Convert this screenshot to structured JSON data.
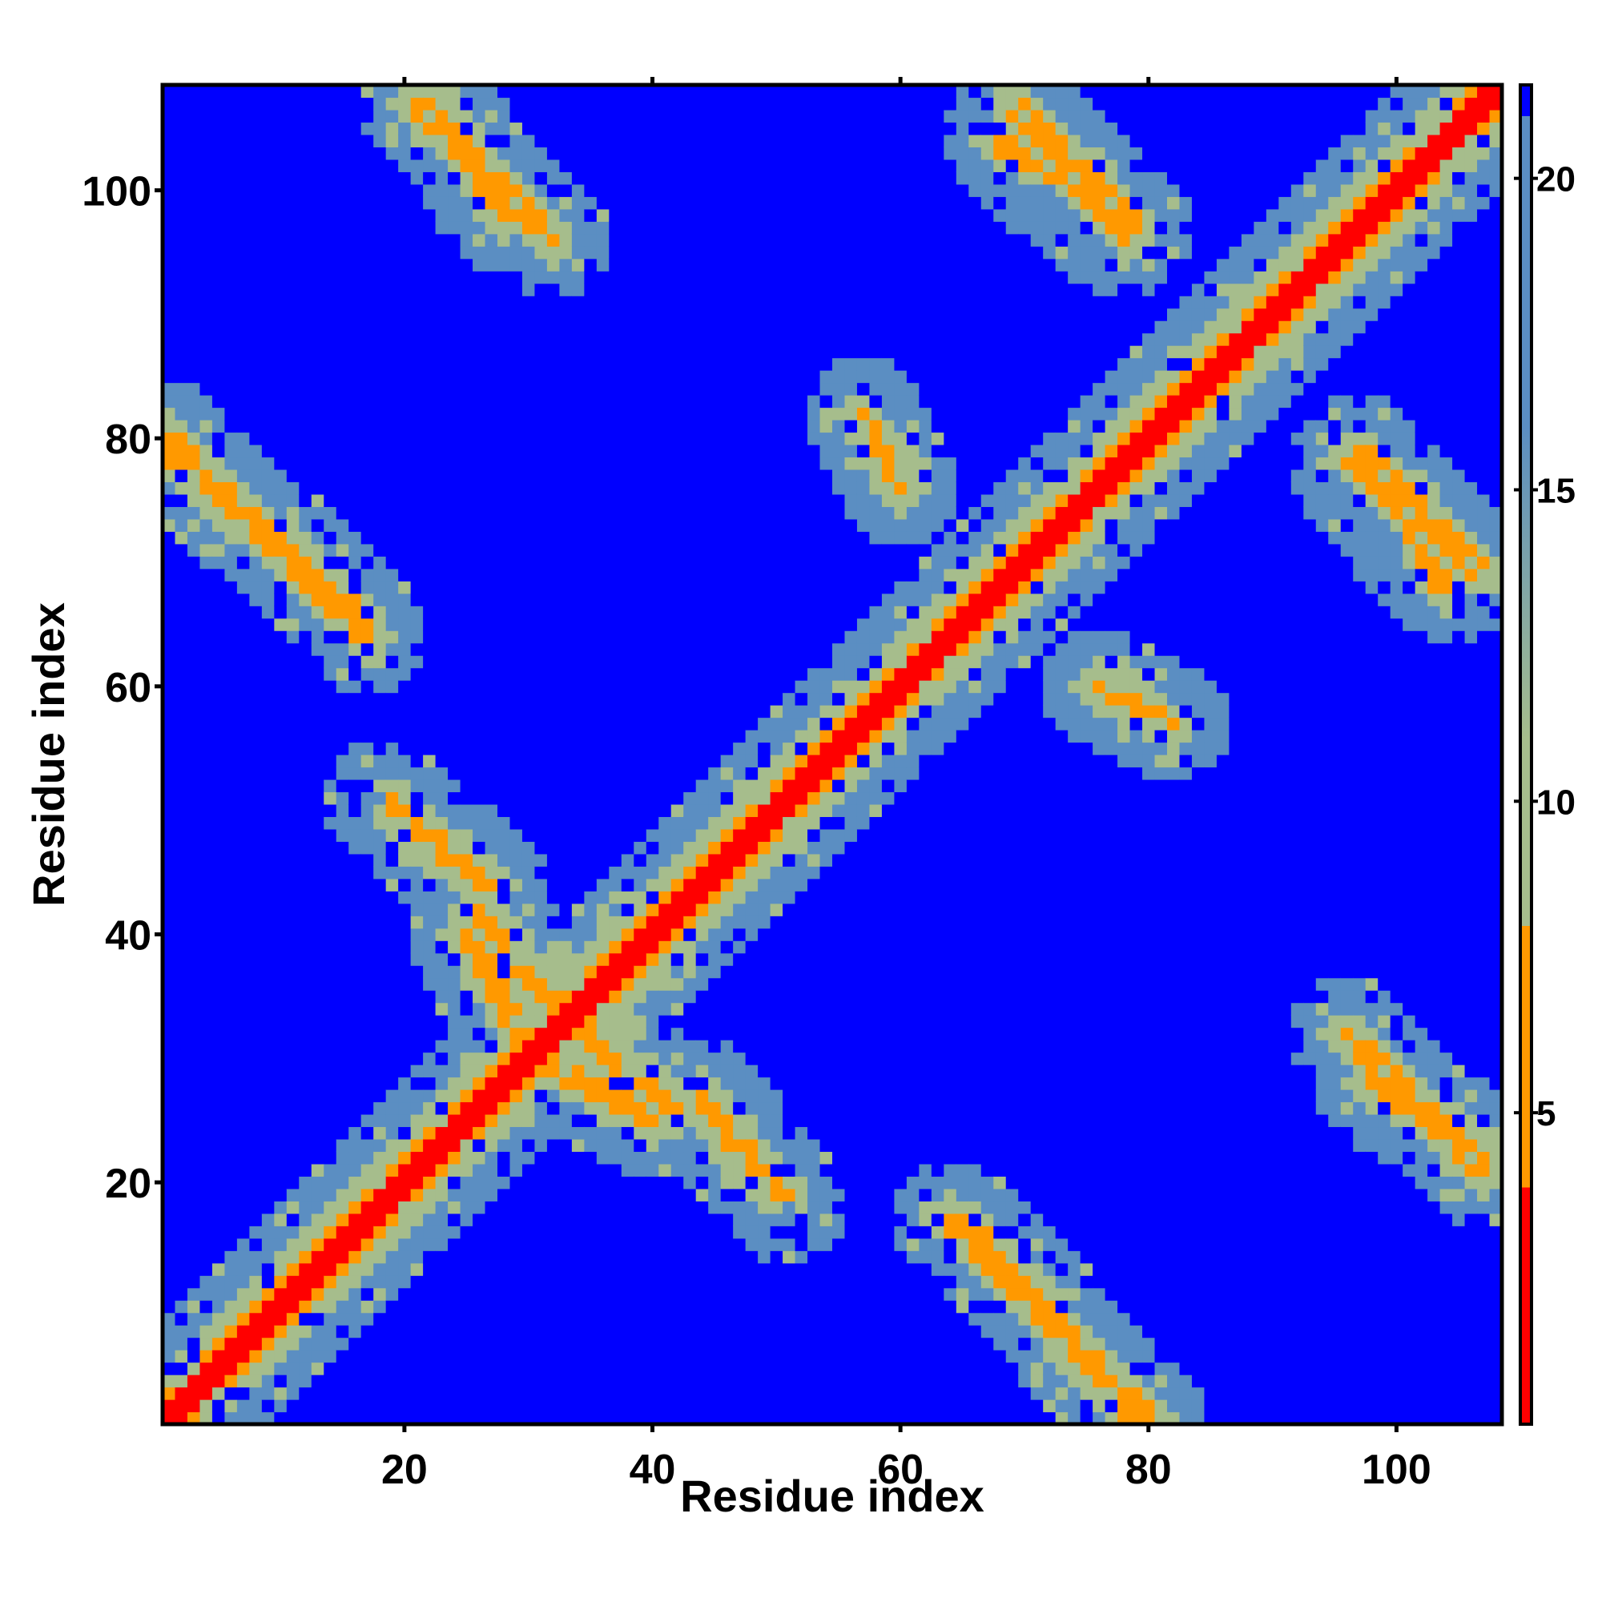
{
  "chart_data": {
    "type": "heatmap",
    "title": "",
    "xlabel": "Residue index",
    "ylabel": "Residue index",
    "n_residues": 108,
    "xlim": [
      0.5,
      108.5
    ],
    "ylim": [
      0.5,
      108.5
    ],
    "x_ticks": [
      20,
      40,
      60,
      80,
      100
    ],
    "y_ticks": [
      20,
      40,
      60,
      80,
      100
    ],
    "colorbar": {
      "ticks": [
        5,
        10,
        15,
        20
      ],
      "range": [
        0,
        21.5
      ],
      "colors": {
        "close": "#ff0000",
        "near": "#ff9900",
        "mid": "#a6bd8c",
        "far": "#5b8ec2",
        "cap": "#0000ff"
      },
      "cap_value": 21
    },
    "grid": false,
    "segments": [
      {
        "a1": 1,
        "a2": 16,
        "b1": 79,
        "b2": 66
      },
      {
        "a1": 22,
        "a2": 28,
        "b1": 108,
        "b2": 98
      },
      {
        "a1": 18,
        "a2": 27,
        "b1": 51,
        "b2": 44
      },
      {
        "a1": 26,
        "a2": 32,
        "b1": 42,
        "b2": 34
      },
      {
        "a1": 31,
        "a2": 40,
        "b1": 30,
        "b2": 25
      },
      {
        "a1": 45,
        "a2": 51,
        "b1": 25,
        "b2": 18
      },
      {
        "a1": 64,
        "a2": 80,
        "b1": 17,
        "b2": 1
      },
      {
        "a1": 68,
        "a2": 78,
        "b1": 104,
        "b2": 96
      },
      {
        "a1": 97,
        "a2": 107,
        "b1": 79,
        "b2": 69
      },
      {
        "a1": 96,
        "a2": 107,
        "b1": 32,
        "b2": 21
      },
      {
        "a1": 57,
        "a2": 64,
        "b1": 57,
        "b2": 66
      },
      {
        "a1": 83,
        "a2": 92,
        "b1": 83,
        "b2": 92
      },
      {
        "a1": 57,
        "a2": 60,
        "b1": 82,
        "b2": 76
      }
    ],
    "voids": [
      {
        "cx": 13,
        "cy": 90,
        "r": 12
      },
      {
        "cx": 42,
        "cy": 95,
        "r": 8
      },
      {
        "cx": 67,
        "cy": 91,
        "r": 8
      },
      {
        "cx": 10,
        "cy": 38,
        "r": 10
      },
      {
        "cx": 60,
        "cy": 32,
        "r": 11
      },
      {
        "cx": 53,
        "cy": 11,
        "r": 8
      },
      {
        "cx": 92,
        "cy": 14,
        "r": 13
      },
      {
        "cx": 90,
        "cy": 67,
        "r": 12
      },
      {
        "cx": 92,
        "cy": 42,
        "r": 10
      },
      {
        "cx": 40,
        "cy": 13,
        "r": 9
      },
      {
        "cx": 38,
        "cy": 66,
        "r": 9
      },
      {
        "cx": 9,
        "cy": 57,
        "r": 7
      },
      {
        "cx": 66,
        "cy": 47,
        "r": 7
      },
      {
        "cx": 35,
        "cy": 54,
        "r": 7
      }
    ]
  }
}
